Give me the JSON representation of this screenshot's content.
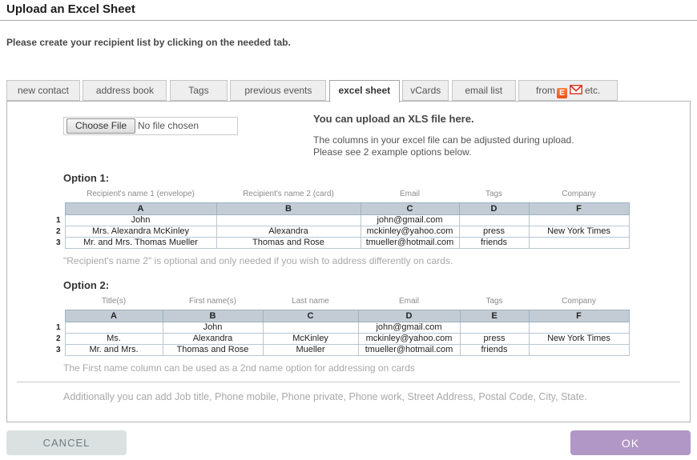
{
  "header": {
    "title": "Upload an Excel Sheet",
    "subtitle": "Please create your recipient list by clicking on the needed tab."
  },
  "tabs": {
    "new_contact": "new contact",
    "address_book": "address book",
    "tags": "Tags",
    "previous_events": "previous events",
    "excel_sheet": "excel sheet",
    "vcards": "vCards",
    "email_list": "email list",
    "from_prefix": "from",
    "from_suffix": "etc.",
    "active_tab": "excel sheet"
  },
  "icons": {
    "eventbrite_letter": "E",
    "gmail": "gmail-envelope"
  },
  "upload": {
    "choose_file_button": "Choose File",
    "file_status": "No file chosen",
    "heading": "You can upload an XLS file here.",
    "description_line1": "The columns in your excel file can be adjusted during upload.",
    "description_line2": "Please see 2 example options below."
  },
  "options": [
    {
      "label": "Option 1:",
      "column_labels": [
        "Recipient's name 1 (envelope)",
        "Recipient's name 2 (card)",
        "Email",
        "Tags",
        "Company"
      ],
      "headers": [
        "A",
        "B",
        "C",
        "D",
        "F"
      ],
      "rows": [
        {
          "n": "1",
          "cells": [
            "John",
            "",
            "john@gmail.com",
            "",
            ""
          ]
        },
        {
          "n": "2",
          "cells": [
            "Mrs. Alexandra McKinley",
            "Alexandra",
            "mckinley@yahoo.com",
            "press",
            "New York Times"
          ]
        },
        {
          "n": "3",
          "cells": [
            "Mr. and Mrs. Thomas Mueller",
            "Thomas and Rose",
            "tmueller@hotmail.com",
            "friends",
            ""
          ]
        }
      ],
      "note": "\"Recipient's name 2\" is optional and only needed if you wish to address differently on cards."
    },
    {
      "label": "Option 2:",
      "column_labels": [
        "Title(s)",
        "First name(s)",
        "Last name",
        "Email",
        "Tags",
        "Company"
      ],
      "headers": [
        "A",
        "B",
        "C",
        "D",
        "E",
        "F"
      ],
      "rows": [
        {
          "n": "1",
          "cells": [
            "",
            "John",
            "",
            "john@gmail.com",
            "",
            ""
          ]
        },
        {
          "n": "2",
          "cells": [
            "Ms.",
            "Alexandra",
            "McKinley",
            "mckinley@yahoo.com",
            "press",
            "New York Times"
          ]
        },
        {
          "n": "3",
          "cells": [
            "Mr. and Mrs.",
            "Thomas and Rose",
            "Mueller",
            "tmueller@hotmail.com",
            "friends",
            ""
          ]
        }
      ],
      "note": "The First name column can be used as a 2nd name option for addressing on cards"
    }
  ],
  "footer_note": "Additionally you can add Job title, Phone mobile, Phone private, Phone work, Street Address, Postal Code, City, State.",
  "actions": {
    "cancel": "CANCEL",
    "ok": "OK"
  },
  "colors": {
    "ok_button": "#b097c5",
    "cancel_button": "#dbe1e1",
    "table_header_bg": "#c3ccd5",
    "eventbrite_orange": "#ee4f13",
    "gmail_red": "#d93025"
  }
}
